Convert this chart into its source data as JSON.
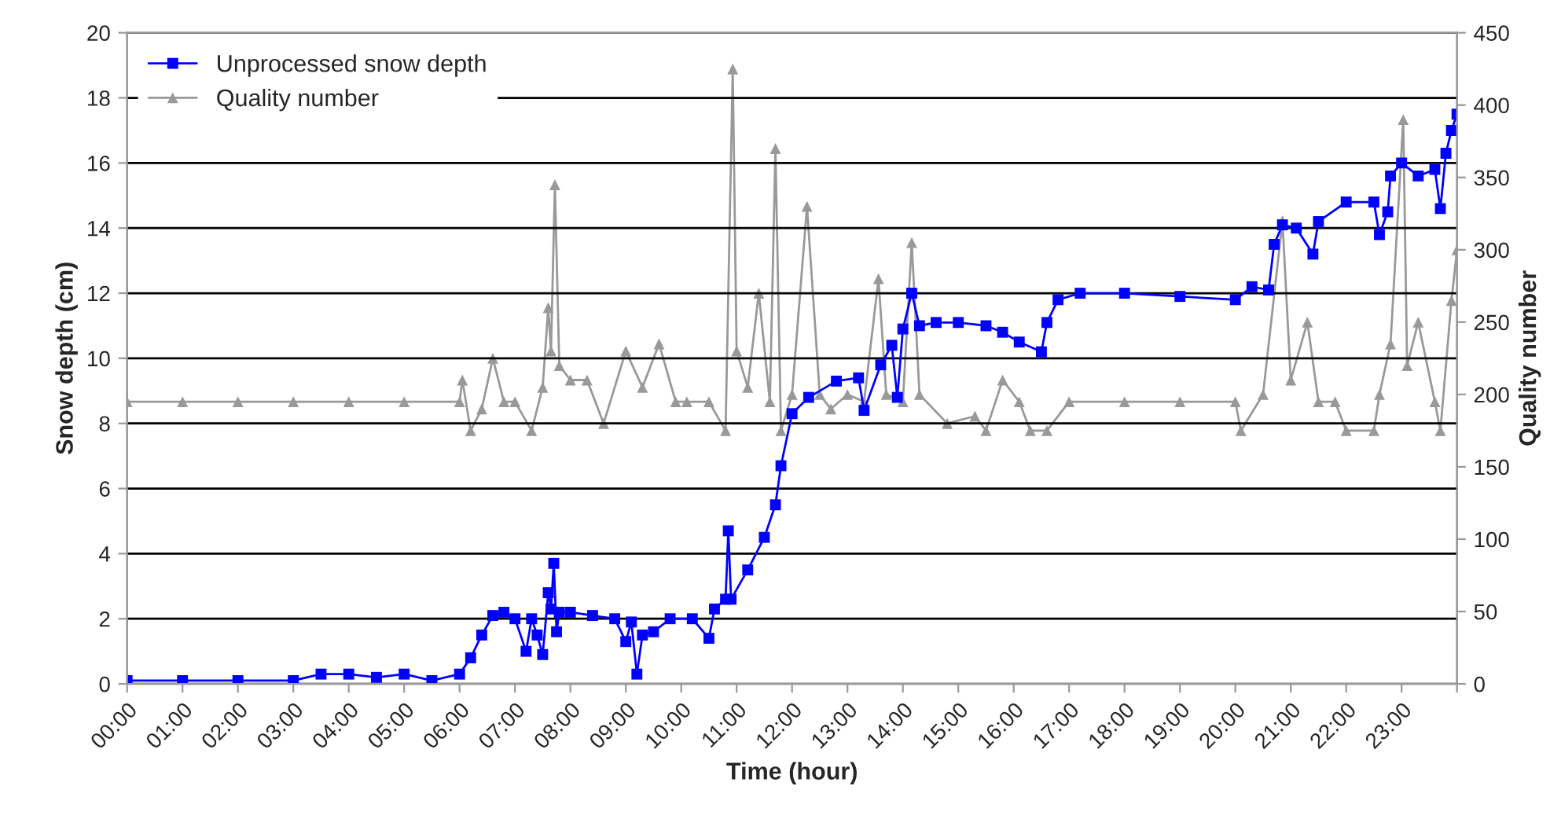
{
  "chart_data": {
    "type": "line",
    "xlabel": "Time (hour)",
    "ylabel": "Snow depth (cm)",
    "y2label": "Quality number",
    "xlim": [
      0,
      24
    ],
    "xticks": [
      {
        "value": 0,
        "label": "00:00"
      },
      {
        "value": 1,
        "label": "01:00"
      },
      {
        "value": 2,
        "label": "02:00"
      },
      {
        "value": 3,
        "label": "03:00"
      },
      {
        "value": 4,
        "label": "04:00"
      },
      {
        "value": 5,
        "label": "05:00"
      },
      {
        "value": 6,
        "label": "06:00"
      },
      {
        "value": 7,
        "label": "07:00"
      },
      {
        "value": 8,
        "label": "08:00"
      },
      {
        "value": 9,
        "label": "09:00"
      },
      {
        "value": 10,
        "label": "10:00"
      },
      {
        "value": 11,
        "label": "11:00"
      },
      {
        "value": 12,
        "label": "12:00"
      },
      {
        "value": 13,
        "label": "13:00"
      },
      {
        "value": 14,
        "label": "14:00"
      },
      {
        "value": 15,
        "label": "15:00"
      },
      {
        "value": 16,
        "label": "16:00"
      },
      {
        "value": 17,
        "label": "17:00"
      },
      {
        "value": 18,
        "label": "18:00"
      },
      {
        "value": 19,
        "label": "19:00"
      },
      {
        "value": 20,
        "label": "20:00"
      },
      {
        "value": 21,
        "label": "21:00"
      },
      {
        "value": 22,
        "label": "22:00"
      },
      {
        "value": 23,
        "label": "23:00"
      },
      {
        "value": 24,
        "label": null
      }
    ],
    "ylim": [
      0,
      20
    ],
    "yticks": [
      0,
      2,
      4,
      6,
      8,
      10,
      12,
      14,
      16,
      18,
      20
    ],
    "y2lim": [
      0,
      450
    ],
    "y2ticks": [
      0,
      50,
      100,
      150,
      200,
      250,
      300,
      350,
      400,
      450
    ],
    "grid": "y",
    "legend": "top left",
    "series": [
      {
        "name": "Unprocessed snow depth",
        "color": "#0000ff",
        "marker": "square",
        "x": [
          0,
          1,
          2,
          3,
          3.5,
          4,
          4.5,
          5,
          5.5,
          6,
          6.2,
          6.4,
          6.6,
          6.8,
          7.0,
          7.2,
          7.3,
          7.4,
          7.5,
          7.6,
          7.65,
          7.7,
          7.75,
          7.8,
          8.0,
          8.4,
          8.8,
          9.0,
          9.1,
          9.2,
          9.3,
          9.5,
          9.8,
          10.2,
          10.5,
          10.6,
          10.8,
          10.85,
          10.9,
          11.2,
          11.5,
          11.7,
          11.8,
          12.0,
          12.3,
          12.8,
          13.2,
          13.3,
          13.6,
          13.8,
          13.9,
          14.0,
          14.16,
          14.3,
          14.6,
          15.0,
          15.5,
          15.8,
          16.1,
          16.5,
          16.6,
          16.8,
          17.2,
          18.0,
          19.0,
          20.0,
          20.3,
          20.6,
          20.7,
          20.85,
          21.1,
          21.4,
          21.5,
          22.0,
          22.5,
          22.6,
          22.75,
          22.8,
          23.0,
          23.3,
          23.6,
          23.7,
          23.8,
          23.9,
          24.0
        ],
        "values": [
          0.1,
          0.1,
          0.1,
          0.1,
          0.3,
          0.3,
          0.2,
          0.3,
          0.1,
          0.3,
          0.8,
          1.5,
          2.1,
          2.2,
          2.0,
          1.0,
          2.0,
          1.5,
          0.9,
          2.8,
          2.3,
          3.7,
          1.6,
          2.2,
          2.2,
          2.1,
          2.0,
          1.3,
          1.9,
          0.3,
          1.5,
          1.6,
          2.0,
          2.0,
          1.4,
          2.3,
          2.6,
          4.7,
          2.6,
          3.5,
          4.5,
          5.5,
          6.7,
          8.3,
          8.8,
          9.3,
          9.4,
          8.4,
          9.8,
          10.4,
          8.8,
          10.9,
          12.0,
          11.0,
          11.1,
          11.1,
          11.0,
          10.8,
          10.5,
          10.2,
          11.1,
          11.8,
          12.0,
          12.0,
          11.9,
          11.8,
          12.2,
          12.1,
          13.5,
          14.1,
          14.0,
          13.2,
          14.2,
          14.8,
          14.8,
          13.8,
          14.5,
          15.6,
          16.0,
          15.6,
          15.8,
          14.6,
          16.3,
          17.0,
          17.5
        ]
      },
      {
        "name": "Quality number",
        "color": "#999999",
        "marker": "triangle",
        "axis": "y2",
        "x": [
          0,
          1,
          2,
          3,
          4,
          5,
          6.0,
          6.05,
          6.2,
          6.4,
          6.6,
          6.8,
          7.0,
          7.3,
          7.5,
          7.6,
          7.65,
          7.72,
          7.8,
          8.0,
          8.3,
          8.6,
          9.0,
          9.3,
          9.6,
          9.9,
          10.1,
          10.5,
          10.8,
          10.93,
          11.0,
          11.2,
          11.4,
          11.6,
          11.7,
          11.8,
          12.0,
          12.27,
          12.5,
          12.7,
          13.0,
          13.3,
          13.56,
          13.7,
          14.0,
          14.16,
          14.3,
          14.8,
          15.3,
          15.5,
          15.8,
          16.1,
          16.3,
          16.6,
          17.0,
          18.0,
          19.0,
          20.0,
          20.1,
          20.5,
          20.85,
          21.0,
          21.3,
          21.5,
          21.8,
          22.0,
          22.5,
          22.6,
          22.8,
          23.03,
          23.1,
          23.3,
          23.6,
          23.7,
          23.9,
          24.0
        ],
        "values": [
          195,
          195,
          195,
          195,
          195,
          195,
          195,
          210,
          175,
          190,
          225,
          195,
          195,
          175,
          205,
          260,
          230,
          345,
          220,
          210,
          210,
          180,
          230,
          205,
          235,
          195,
          195,
          195,
          175,
          425,
          230,
          205,
          270,
          195,
          370,
          175,
          200,
          330,
          200,
          190,
          200,
          195,
          280,
          200,
          195,
          305,
          200,
          180,
          185,
          175,
          210,
          195,
          175,
          175,
          195,
          195,
          195,
          195,
          175,
          200,
          320,
          210,
          250,
          195,
          195,
          175,
          175,
          200,
          235,
          390,
          220,
          250,
          195,
          175,
          265,
          300
        ]
      }
    ]
  }
}
